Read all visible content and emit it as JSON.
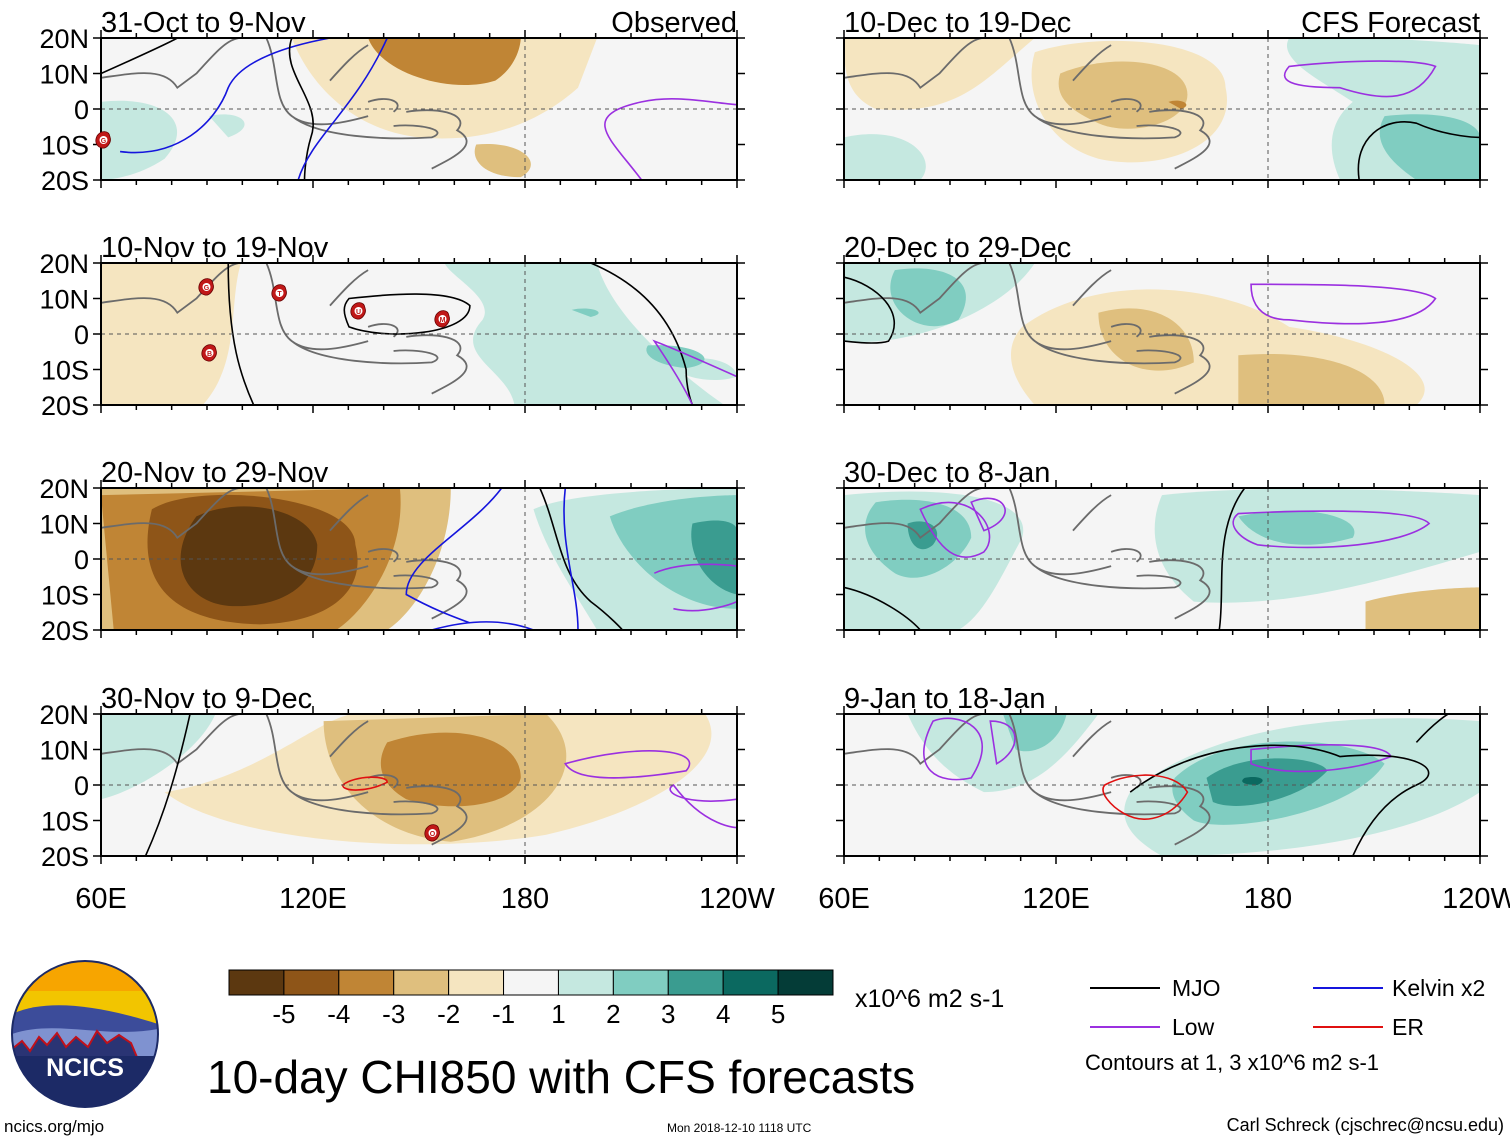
{
  "title": "10-day CHI850 with CFS forecasts",
  "labels": {
    "observed": "Observed",
    "forecast": "CFS Forecast"
  },
  "lat_ticks": [
    "20N",
    "10N",
    "0",
    "10S",
    "20S"
  ],
  "lon_ticks": [
    "60E",
    "120E",
    "180",
    "120W"
  ],
  "panels": [
    {
      "period": "31-Oct to 9-Nov",
      "kind": "observed"
    },
    {
      "period": "10-Nov to 19-Nov",
      "kind": "observed"
    },
    {
      "period": "20-Nov to 29-Nov",
      "kind": "observed"
    },
    {
      "period": "30-Nov to 9-Dec",
      "kind": "observed"
    },
    {
      "period": "10-Dec to 19-Dec",
      "kind": "forecast"
    },
    {
      "period": "20-Dec to 29-Dec",
      "kind": "forecast"
    },
    {
      "period": "30-Dec to 8-Jan",
      "kind": "forecast"
    },
    {
      "period": "9-Jan to 18-Jan",
      "kind": "forecast"
    }
  ],
  "colorbar": {
    "ticks": [
      "-5",
      "-4",
      "-3",
      "-2",
      "-1",
      "1",
      "2",
      "3",
      "4",
      "5"
    ],
    "colors": [
      "#5c3810",
      "#8e5518",
      "#c08535",
      "#dfbf7e",
      "#f5e5c0",
      "#f5f5f5",
      "#c5e8e0",
      "#80cdc1",
      "#3a9c90",
      "#0b6960",
      "#043c37"
    ],
    "units": "x10^6 m2 s-1"
  },
  "contour_legend": [
    {
      "name": "MJO",
      "color": "#000000"
    },
    {
      "name": "Kelvin x2",
      "color": "#1515dd"
    },
    {
      "name": "Low",
      "color": "#9b30e0"
    },
    {
      "name": "ER",
      "color": "#e01010"
    }
  ],
  "contour_note": "Contours at 1, 3 x10^6 m2 s-1",
  "storm_markers": [
    "G",
    "T",
    "B",
    "U",
    "M",
    "O"
  ],
  "logo": {
    "text": "NCICS"
  },
  "footer": {
    "site": "ncics.org/mjo",
    "timestamp": "Mon 2018-12-10 1118 UTC",
    "author": "Carl Schreck (cjschrec@ncsu.edu)"
  }
}
